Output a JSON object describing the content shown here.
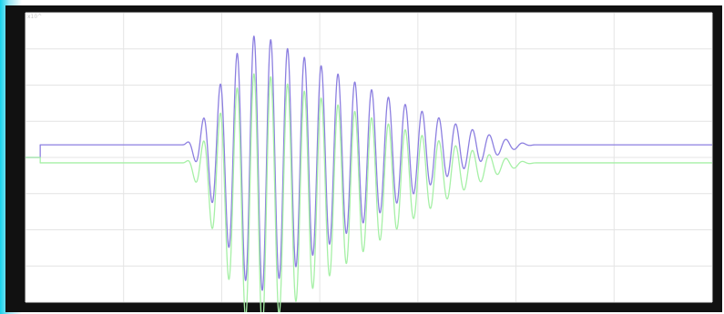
{
  "chart_data": {
    "type": "line",
    "title": "",
    "xlabel": "",
    "ylabel": "",
    "y_exponent_label": "x10^",
    "xlim": [
      0,
      7
    ],
    "ylim": [
      -4,
      4
    ],
    "x_ticks": [
      0,
      1,
      2,
      3,
      4,
      5,
      6,
      7
    ],
    "y_ticks": [
      -4,
      -3,
      -2,
      -1,
      0,
      1,
      2,
      3,
      4
    ],
    "x_tick_labels": [
      "",
      "",
      "",
      "",
      "",
      "",
      "",
      ""
    ],
    "y_tick_labels": [
      "",
      "",
      "",
      "",
      "",
      "",
      "",
      "",
      ""
    ],
    "grid": true,
    "series": [
      {
        "color": "#8c7fe0",
        "baseline": {
          "before": 0.35,
          "after": 0.35,
          "start_value": 0.0,
          "start_x": 0.15
        },
        "burst": {
          "x_start": 1.6,
          "x_end": 5.2,
          "cycles": 21,
          "peak_x": 2.4,
          "peak_amplitude": 3.55,
          "offset": -0.5
        }
      },
      {
        "color": "#a6f0a6",
        "baseline": {
          "before": -0.15,
          "after": -0.15,
          "start_value": 0.0,
          "start_x": 0.15
        },
        "burst": {
          "x_start": 1.6,
          "x_end": 5.2,
          "cycles": 21,
          "peak_x": 2.4,
          "peak_amplitude": 3.55,
          "offset": -1.05
        }
      }
    ]
  },
  "style": {
    "frame_color": "#111111",
    "plot_background": "#ffffff",
    "grid_color": "#e4e4e4"
  }
}
